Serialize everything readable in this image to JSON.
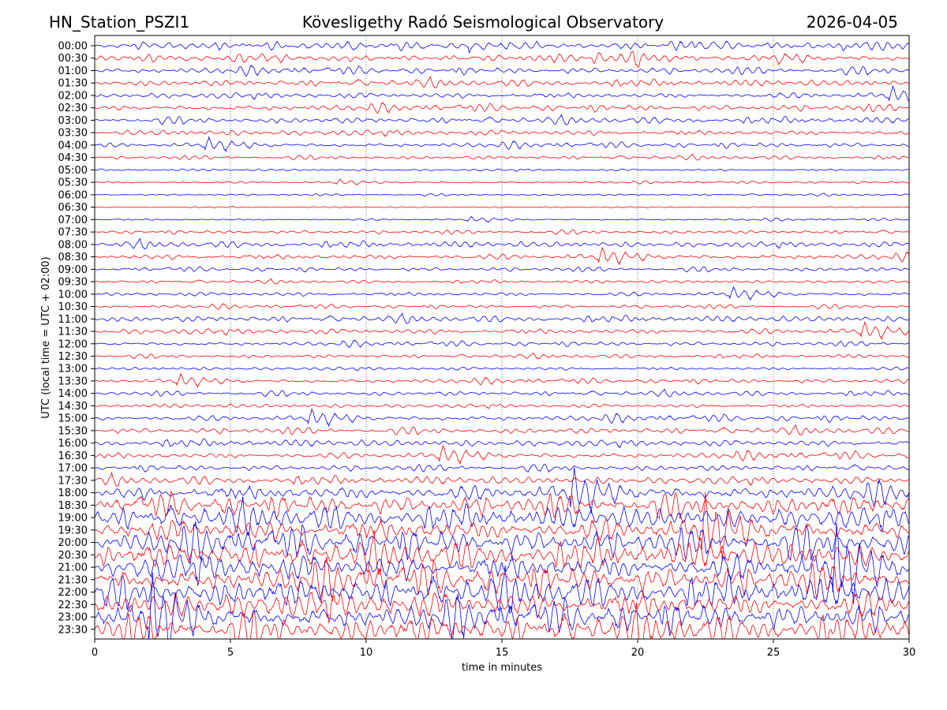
{
  "chart_data": {
    "type": "line",
    "title_left": "HN_Station_PSZI1",
    "title": "Kövesligethy Radó Seismological Observatory",
    "title_right": "2026-04-05",
    "xlabel": "time in minutes",
    "ylabel": "UTC (local time = UTC + 02:00)",
    "xlim": [
      0,
      30
    ],
    "xticks": [
      "0",
      "5",
      "10",
      "15",
      "20",
      "25",
      "30"
    ],
    "grid": "vertical dotted at x ticks",
    "trace_colors": [
      "#0000ff",
      "#ff0000"
    ],
    "traces": [
      {
        "label": "00:00",
        "amplitude": 0.7
      },
      {
        "label": "00:30",
        "amplitude": 0.7
      },
      {
        "label": "01:00",
        "amplitude": 0.65
      },
      {
        "label": "01:30",
        "amplitude": 0.65
      },
      {
        "label": "02:00",
        "amplitude": 0.6
      },
      {
        "label": "02:30",
        "amplitude": 0.65
      },
      {
        "label": "03:00",
        "amplitude": 0.6
      },
      {
        "label": "03:30",
        "amplitude": 0.6
      },
      {
        "label": "04:00",
        "amplitude": 0.5
      },
      {
        "label": "04:30",
        "amplitude": 0.35
      },
      {
        "label": "05:00",
        "amplitude": 0.22
      },
      {
        "label": "05:30",
        "amplitude": 0.2
      },
      {
        "label": "06:00",
        "amplitude": 0.18
      },
      {
        "label": "06:30",
        "amplitude": 0.12
      },
      {
        "label": "07:00",
        "amplitude": 0.2
      },
      {
        "label": "07:30",
        "amplitude": 0.35
      },
      {
        "label": "08:00",
        "amplitude": 0.6
      },
      {
        "label": "08:30",
        "amplitude": 0.6
      },
      {
        "label": "09:00",
        "amplitude": 0.4
      },
      {
        "label": "09:30",
        "amplitude": 0.3
      },
      {
        "label": "10:00",
        "amplitude": 0.45
      },
      {
        "label": "10:30",
        "amplitude": 0.35
      },
      {
        "label": "11:00",
        "amplitude": 0.6
      },
      {
        "label": "11:30",
        "amplitude": 0.6
      },
      {
        "label": "12:00",
        "amplitude": 0.45
      },
      {
        "label": "12:30",
        "amplitude": 0.35
      },
      {
        "label": "13:00",
        "amplitude": 0.35
      },
      {
        "label": "13:30",
        "amplitude": 0.45
      },
      {
        "label": "14:00",
        "amplitude": 0.45
      },
      {
        "label": "14:30",
        "amplitude": 0.4
      },
      {
        "label": "15:00",
        "amplitude": 0.6
      },
      {
        "label": "15:30",
        "amplitude": 0.6
      },
      {
        "label": "16:00",
        "amplitude": 0.7
      },
      {
        "label": "16:30",
        "amplitude": 0.65
      },
      {
        "label": "17:00",
        "amplitude": 0.6
      },
      {
        "label": "17:30",
        "amplitude": 0.8
      },
      {
        "label": "18:00",
        "amplitude": 1.6
      },
      {
        "label": "18:30",
        "amplitude": 2.0
      },
      {
        "label": "19:00",
        "amplitude": 2.2
      },
      {
        "label": "19:30",
        "amplitude": 2.4
      },
      {
        "label": "20:00",
        "amplitude": 2.6
      },
      {
        "label": "20:30",
        "amplitude": 2.6
      },
      {
        "label": "21:00",
        "amplitude": 2.8
      },
      {
        "label": "21:30",
        "amplitude": 2.8
      },
      {
        "label": "22:00",
        "amplitude": 2.8
      },
      {
        "label": "22:30",
        "amplitude": 2.8
      },
      {
        "label": "23:00",
        "amplitude": 2.8
      },
      {
        "label": "23:30",
        "amplitude": 2.8
      }
    ]
  }
}
